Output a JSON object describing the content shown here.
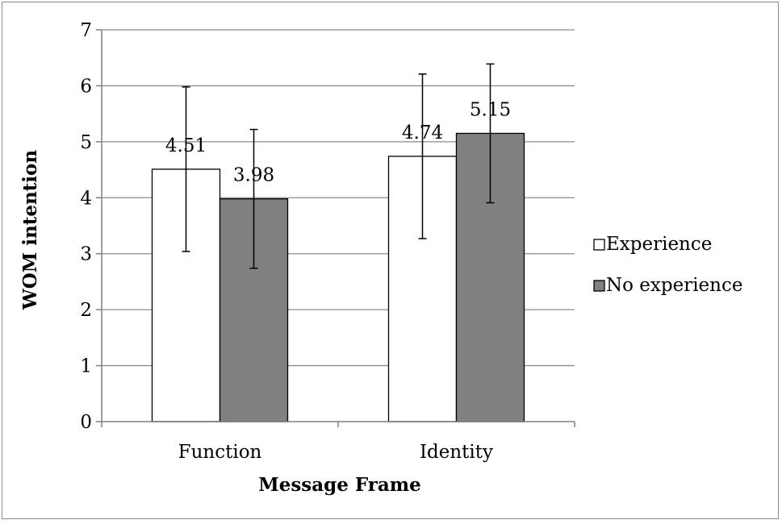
{
  "chart_data": {
    "type": "bar",
    "categories": [
      "Function",
      "Identity"
    ],
    "series": [
      {
        "name": "Experience",
        "values": [
          4.51,
          4.74
        ],
        "error_low": [
          3.04,
          3.27
        ],
        "error_high": [
          5.98,
          6.21
        ],
        "color": "#ffffff"
      },
      {
        "name": "No experience",
        "values": [
          3.98,
          5.15
        ],
        "error_low": [
          2.74,
          3.91
        ],
        "error_high": [
          5.22,
          6.39
        ],
        "color": "#808080"
      }
    ],
    "xlabel": "Message Frame",
    "ylabel": "WOM intention",
    "ylim": [
      0,
      7
    ],
    "yticks": [
      "0",
      "1",
      "2",
      "3",
      "4",
      "5",
      "6",
      "7"
    ],
    "data_labels": [
      [
        "4.51",
        "4.74"
      ],
      [
        "3.98",
        "5.15"
      ]
    ],
    "grid": true,
    "legend_position": "right"
  }
}
